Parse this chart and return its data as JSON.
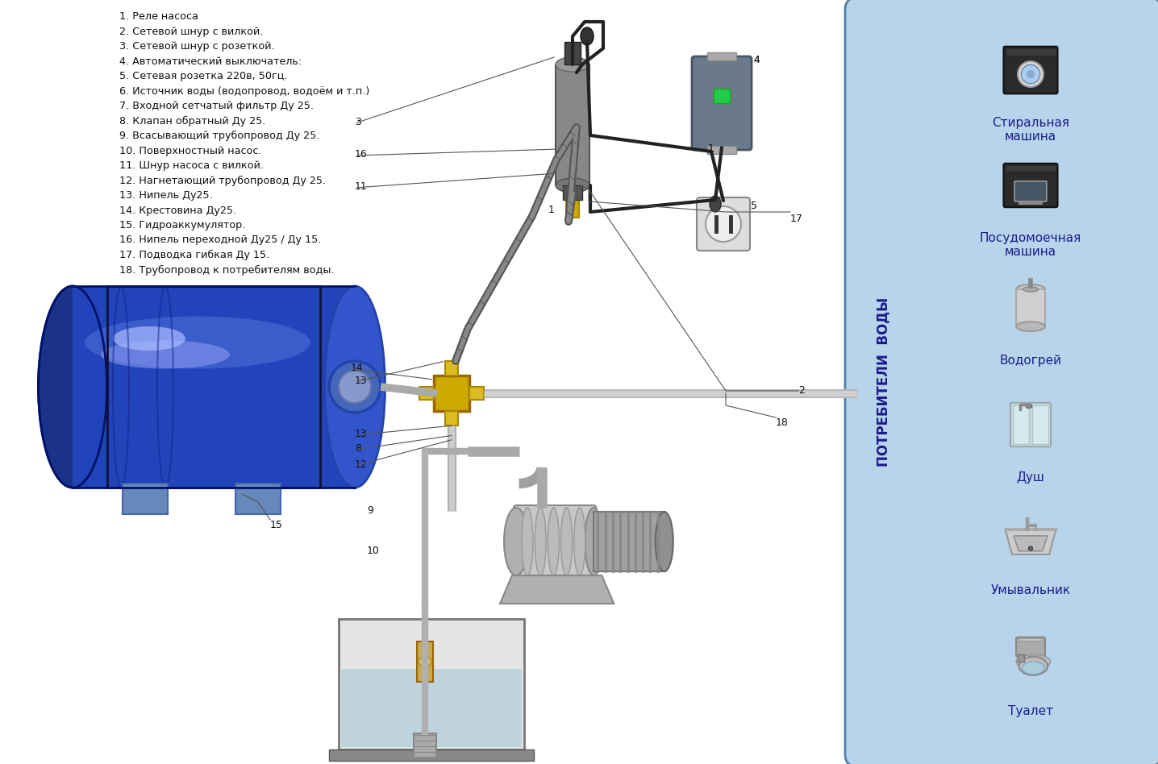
{
  "bg_color": "#ffffff",
  "right_panel_color": "#b8d4ea",
  "right_panel_border": "#5080a0",
  "legend_items": [
    "1. Реле насоса",
    "2. Сетевой шнур с вилкой.",
    "3. Сетевой шнур с розеткой.",
    "4. Автоматический выключатель:",
    "5. Сетевая розетка 220в, 50гц.",
    "6. Источник воды (водопровод, водоём и т.п.)",
    "7. Входной сетчатый фильтр Ду 25.",
    "8. Клапан обратный Ду 25.",
    "9. Всасывающий трубопровод Ду 25.",
    "10. Поверхностный насос.",
    "11. Шнур насоса с вилкой.",
    "12. Нагнетающий трубопровод Ду 25.",
    "13. Нипель Ду25.",
    "14. Крестовина Ду25.",
    "15. Гидроаккумулятор.",
    "16. Нипель переходной Ду25 / Ду 15.",
    "17. Подводка гибкая Ду 15.",
    "18. Трубопровод к потребителям воды."
  ],
  "consumers": [
    "Стиральная\nмашина",
    "Посудомоечная\nмашина",
    "Водогрей",
    "Душ",
    "Умывальник",
    "Туалет"
  ],
  "consumers_label": "ПОТРЕБИТЕЛИ  ВОДЫ"
}
